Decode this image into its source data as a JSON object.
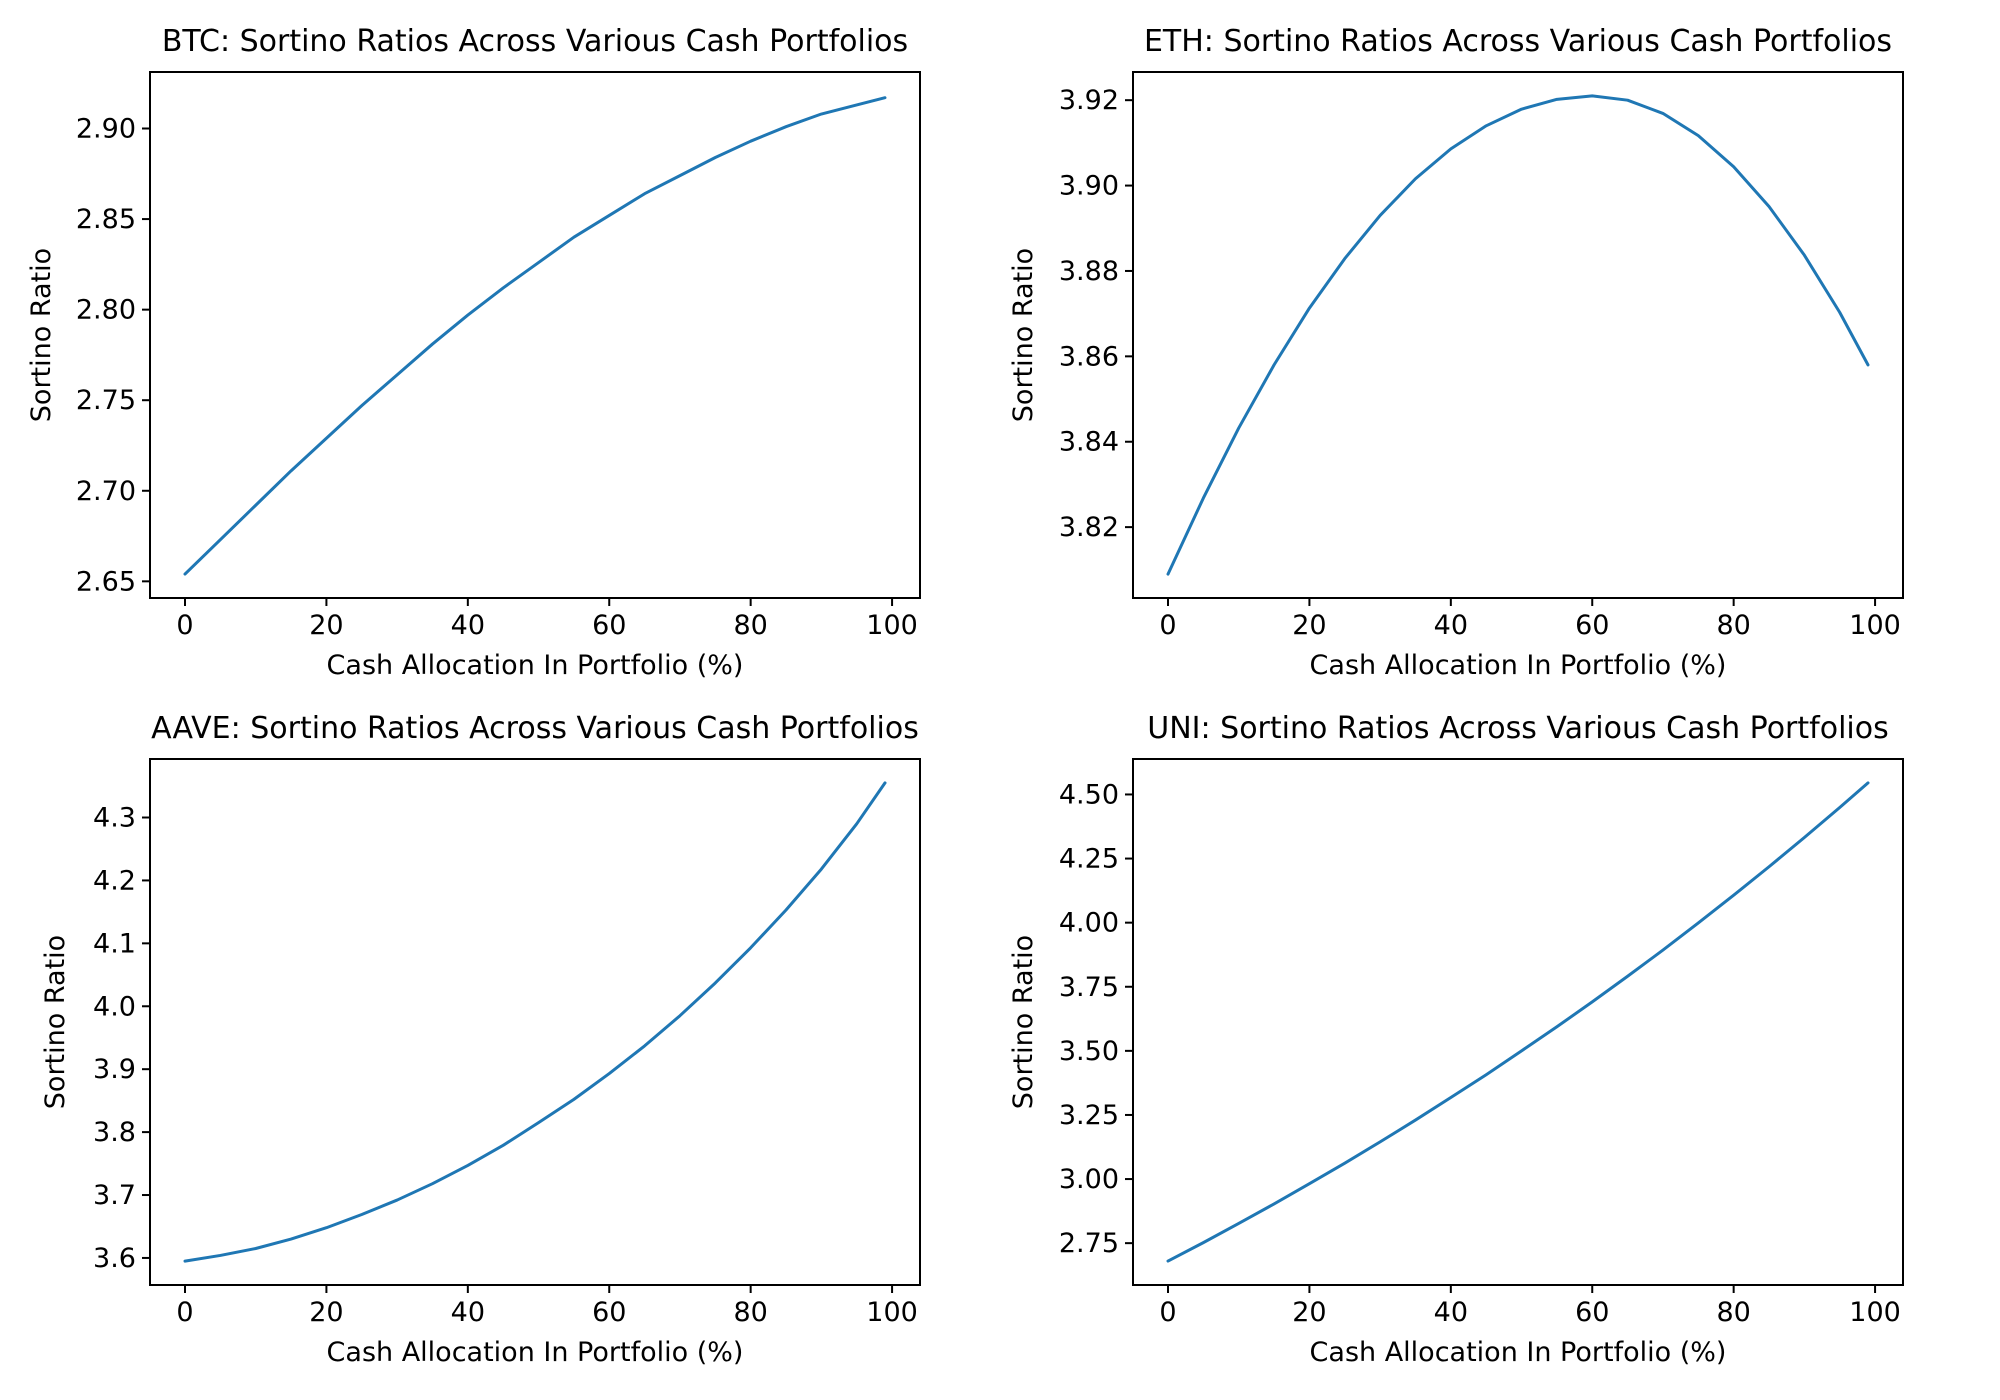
{
  "figure": {
    "background_color": "#ffffff",
    "axes_edge_color": "#000000",
    "line_color": "#1f77b4",
    "text_color": "#000000"
  },
  "chart_data": [
    {
      "type": "line",
      "asset": "BTC",
      "title": "BTC: Sortino Ratios Across Various Cash Portfolios",
      "xlabel": "Cash Allocation In Portfolio (%)",
      "ylabel": "Sortino Ratio",
      "xlim": [
        -4.95,
        103.95
      ],
      "ylim": [
        2.6408,
        2.9312
      ],
      "xticks": [
        0,
        20,
        40,
        60,
        80,
        100
      ],
      "xtick_labels": [
        "0",
        "20",
        "40",
        "60",
        "80",
        "100"
      ],
      "yticks": [
        2.65,
        2.7,
        2.75,
        2.8,
        2.85,
        2.9
      ],
      "ytick_labels": [
        "2.65",
        "2.70",
        "2.75",
        "2.80",
        "2.85",
        "2.90"
      ],
      "grid": false,
      "legend": "none",
      "x": [
        0,
        5,
        10,
        15,
        20,
        25,
        30,
        35,
        40,
        45,
        50,
        55,
        60,
        65,
        70,
        75,
        80,
        85,
        90,
        95,
        99
      ],
      "y": [
        2.654,
        2.673,
        2.692,
        2.711,
        2.729,
        2.747,
        2.764,
        2.781,
        2.797,
        2.812,
        2.826,
        2.84,
        2.852,
        2.864,
        2.874,
        2.884,
        2.893,
        2.901,
        2.908,
        2.913,
        2.917
      ]
    },
    {
      "type": "line",
      "asset": "ETH",
      "title": "ETH: Sortino Ratios Across Various Cash Portfolios",
      "xlabel": "Cash Allocation In Portfolio (%)",
      "ylabel": "Sortino Ratio",
      "xlim": [
        -4.95,
        103.95
      ],
      "ylim": [
        3.8034,
        3.9266
      ],
      "xticks": [
        0,
        20,
        40,
        60,
        80,
        100
      ],
      "xtick_labels": [
        "0",
        "20",
        "40",
        "60",
        "80",
        "100"
      ],
      "yticks": [
        3.82,
        3.84,
        3.86,
        3.88,
        3.9,
        3.92
      ],
      "ytick_labels": [
        "3.82",
        "3.84",
        "3.86",
        "3.88",
        "3.90",
        "3.92"
      ],
      "grid": false,
      "legend": "none",
      "x": [
        0,
        5,
        10,
        15,
        20,
        25,
        30,
        35,
        40,
        45,
        50,
        55,
        60,
        65,
        70,
        75,
        80,
        85,
        90,
        95,
        99
      ],
      "y": [
        3.809,
        3.8268,
        3.8432,
        3.858,
        3.8713,
        3.8829,
        3.893,
        3.9016,
        3.9086,
        3.914,
        3.9179,
        3.9202,
        3.921,
        3.92,
        3.9169,
        3.9117,
        3.9044,
        3.8951,
        3.8837,
        3.8703,
        3.858
      ]
    },
    {
      "type": "line",
      "asset": "AAVE",
      "title": "AAVE: Sortino Ratios Across Various Cash Portfolios",
      "xlabel": "Cash Allocation In Portfolio (%)",
      "ylabel": "Sortino Ratio",
      "xlim": [
        -4.95,
        103.95
      ],
      "ylim": [
        3.557,
        4.393
      ],
      "xticks": [
        0,
        20,
        40,
        60,
        80,
        100
      ],
      "xtick_labels": [
        "0",
        "20",
        "40",
        "60",
        "80",
        "100"
      ],
      "yticks": [
        3.6,
        3.7,
        3.8,
        3.9,
        4.0,
        4.1,
        4.2,
        4.3
      ],
      "ytick_labels": [
        "3.6",
        "3.7",
        "3.8",
        "3.9",
        "4.0",
        "4.1",
        "4.2",
        "4.3"
      ],
      "grid": false,
      "legend": "none",
      "x": [
        0,
        5,
        10,
        15,
        20,
        25,
        30,
        35,
        40,
        45,
        50,
        55,
        60,
        65,
        70,
        75,
        80,
        85,
        90,
        95,
        99
      ],
      "y": [
        3.595,
        3.604,
        3.615,
        3.63,
        3.648,
        3.669,
        3.692,
        3.718,
        3.747,
        3.779,
        3.815,
        3.852,
        3.893,
        3.937,
        3.985,
        4.037,
        4.093,
        4.153,
        4.218,
        4.29,
        4.355
      ]
    },
    {
      "type": "line",
      "asset": "UNI",
      "title": "UNI: Sortino Ratios Across Various Cash Portfolios",
      "xlabel": "Cash Allocation In Portfolio (%)",
      "ylabel": "Sortino Ratio",
      "xlim": [
        -4.95,
        103.95
      ],
      "ylim": [
        2.5868,
        4.6383
      ],
      "xticks": [
        0,
        20,
        40,
        60,
        80,
        100
      ],
      "xtick_labels": [
        "0",
        "20",
        "40",
        "60",
        "80",
        "100"
      ],
      "yticks": [
        2.75,
        3.0,
        3.25,
        3.5,
        3.75,
        4.0,
        4.25,
        4.5
      ],
      "ytick_labels": [
        "2.75",
        "3.00",
        "3.25",
        "3.50",
        "3.75",
        "4.00",
        "4.25",
        "4.50"
      ],
      "grid": false,
      "legend": "none",
      "x": [
        0,
        5,
        10,
        15,
        20,
        25,
        30,
        35,
        40,
        45,
        50,
        55,
        60,
        65,
        70,
        75,
        80,
        85,
        90,
        95,
        99
      ],
      "y": [
        2.68,
        2.752,
        2.827,
        2.903,
        2.982,
        3.062,
        3.145,
        3.23,
        3.318,
        3.407,
        3.5,
        3.594,
        3.691,
        3.791,
        3.893,
        3.999,
        4.107,
        4.218,
        4.332,
        4.449,
        4.545
      ]
    }
  ]
}
